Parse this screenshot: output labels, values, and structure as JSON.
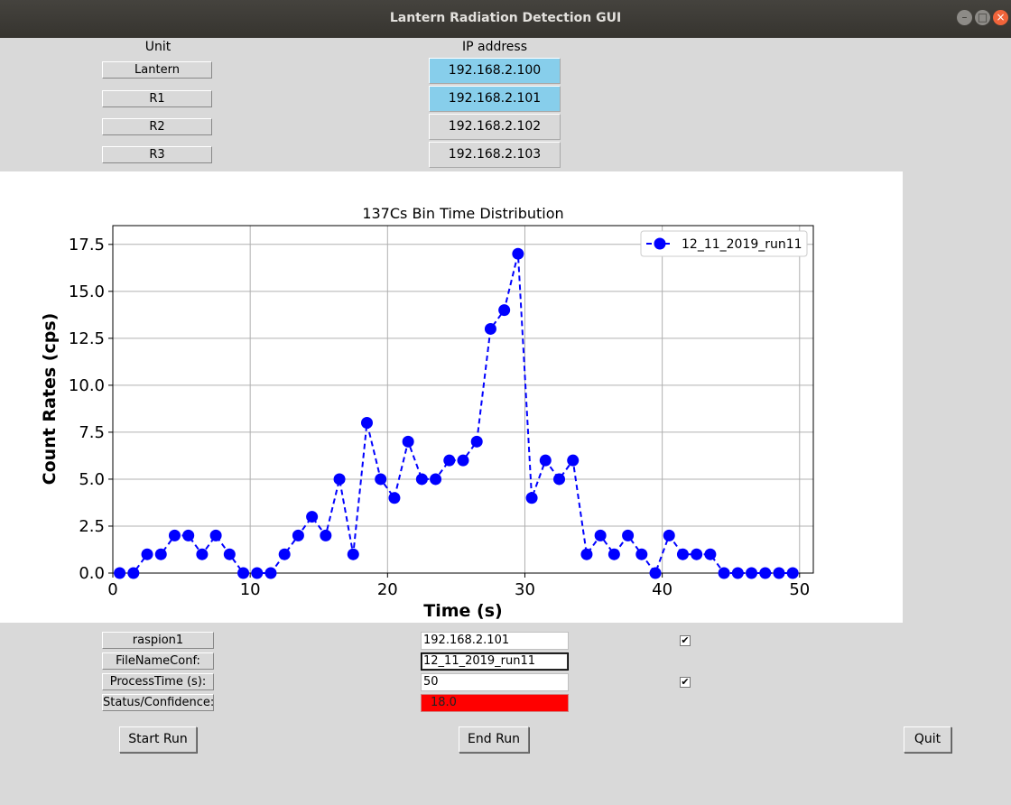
{
  "window": {
    "title": "Lantern Radiation Detection GUI",
    "minimize_icon": "minimize-icon",
    "maximize_icon": "maximize-icon",
    "close_icon": "close-icon"
  },
  "headers": {
    "unit": "Unit",
    "ip": "IP address"
  },
  "units": [
    {
      "label": "Lantern",
      "ip": "192.168.2.100",
      "active": true
    },
    {
      "label": "R1",
      "ip": "192.168.2.101",
      "active": true
    },
    {
      "label": "R2",
      "ip": "192.168.2.102",
      "active": false
    },
    {
      "label": "R3",
      "ip": "192.168.2.103",
      "active": false
    }
  ],
  "form": {
    "host_label": "raspion1",
    "host_value": "192.168.2.101",
    "host_checked": true,
    "file_label": "FileNameConf:",
    "file_value": "12_11_2019_run11",
    "time_label": "ProcessTime (s):",
    "time_value": "50",
    "time_checked": true,
    "status_label": "Status/Confidence:",
    "status_value": "18.0",
    "status_color": "#ff0000"
  },
  "buttons": {
    "start": "Start Run",
    "end": "End Run",
    "quit": "Quit"
  },
  "colors": {
    "active_ip": "#87ceeb",
    "series": "#0000ff"
  },
  "chart_data": {
    "type": "line",
    "title": "137Cs Bin Time Distribution",
    "xlabel": "Time (s)",
    "ylabel": "Count Rates (cps)",
    "xlim": [
      0,
      51
    ],
    "ylim": [
      0,
      18.5
    ],
    "xticks": [
      0,
      10,
      20,
      30,
      40,
      50
    ],
    "yticks": [
      0.0,
      2.5,
      5.0,
      7.5,
      10.0,
      12.5,
      15.0,
      17.5
    ],
    "grid": true,
    "legend_position": "top-right",
    "series": [
      {
        "name": "12_11_2019_run11",
        "style": "dashed-marker",
        "x": [
          0.5,
          1.5,
          2.5,
          3.5,
          4.5,
          5.5,
          6.5,
          7.5,
          8.5,
          9.5,
          10.5,
          11.5,
          12.5,
          13.5,
          14.5,
          15.5,
          16.5,
          17.5,
          18.5,
          19.5,
          20.5,
          21.5,
          22.5,
          23.5,
          24.5,
          25.5,
          26.5,
          27.5,
          28.5,
          29.5,
          30.5,
          31.5,
          32.5,
          33.5,
          34.5,
          35.5,
          36.5,
          37.5,
          38.5,
          39.5,
          40.5,
          41.5,
          42.5,
          43.5,
          44.5,
          45.5,
          46.5,
          47.5,
          48.5,
          49.5
        ],
        "values": [
          0,
          0,
          1,
          1,
          2,
          2,
          1,
          2,
          1,
          0,
          0,
          0,
          1,
          2,
          3,
          2,
          5,
          1,
          8,
          5,
          4,
          7,
          5,
          5,
          6,
          6,
          7,
          13,
          14,
          17,
          4,
          6,
          5,
          6,
          1,
          2,
          1,
          2,
          1,
          0,
          2,
          1,
          1,
          1,
          0,
          0,
          0,
          0,
          0,
          0
        ]
      }
    ]
  }
}
